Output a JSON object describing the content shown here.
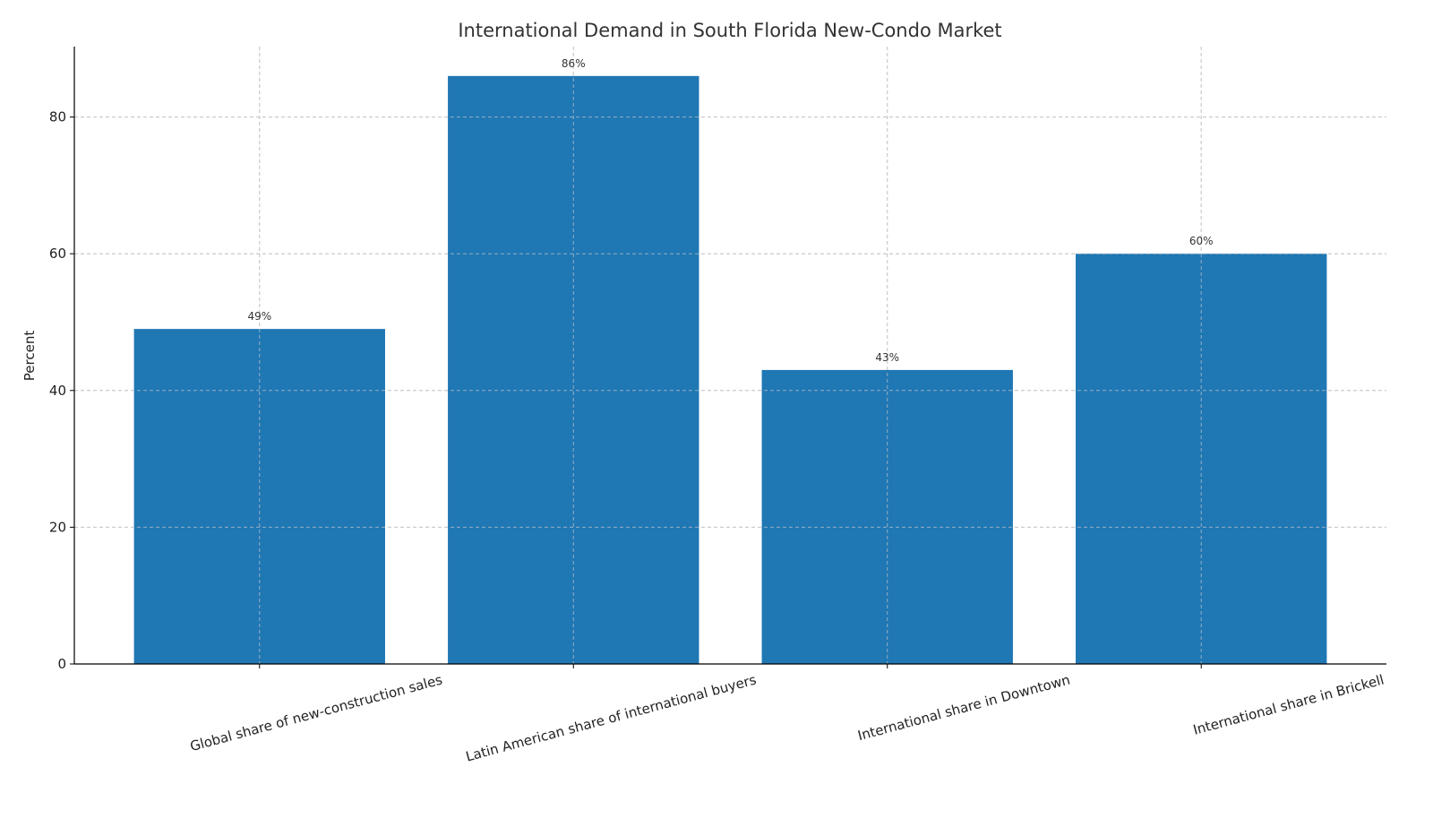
{
  "chart_data": {
    "type": "bar",
    "title": "International Demand in South Florida New-Condo Market",
    "xlabel": "",
    "ylabel": "Percent",
    "categories": [
      "Global share of new-construction sales",
      "Latin American share of international buyers",
      "International share in Downtown",
      "International share in Brickell"
    ],
    "values": [
      49,
      86,
      43,
      60
    ],
    "data_labels": [
      "49%",
      "86%",
      "43%",
      "60%"
    ],
    "ylim": [
      0,
      90.3
    ],
    "yticks": [
      0,
      20,
      40,
      60,
      80
    ],
    "grid": true,
    "bar_color": "#1f77b4",
    "x_tick_rotation_deg": 15
  }
}
